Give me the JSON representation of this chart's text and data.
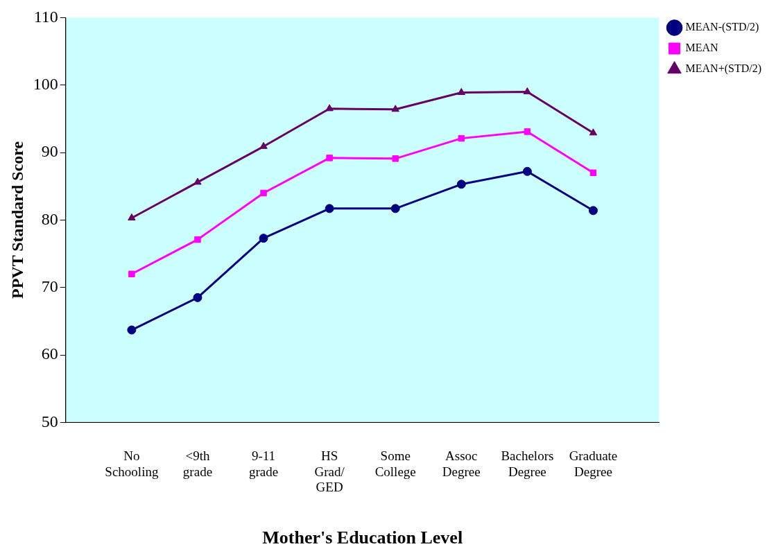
{
  "chart_data": {
    "type": "line",
    "xlabel": "Mother's Education Level",
    "ylabel": "PPVT Standard Score",
    "categories": [
      null,
      "No Schooling",
      "<9th grade",
      "9-11 grade",
      "HS Grad/ GED",
      "Some College",
      "Assoc Degree",
      "Bachelors Degree",
      "Graduate Degree",
      null
    ],
    "series": [
      {
        "name": "MEAN-(STD/2)",
        "color": "#000080",
        "marker": "circle",
        "values": [
          null,
          63.7,
          68.5,
          77.3,
          81.7,
          81.7,
          85.3,
          87.2,
          81.4,
          null
        ]
      },
      {
        "name": "MEAN",
        "color": "#ff00ff",
        "marker": "square",
        "values": [
          null,
          72.0,
          77.1,
          84.0,
          89.2,
          89.1,
          92.1,
          93.1,
          87.0,
          null
        ]
      },
      {
        "name": "MEAN+(STD/2)",
        "color": "#660066",
        "marker": "triangle",
        "values": [
          null,
          80.3,
          85.6,
          90.9,
          96.5,
          96.4,
          98.9,
          99.0,
          92.9,
          null
        ]
      }
    ],
    "ylim": [
      50,
      110
    ],
    "yticks": [
      50,
      60,
      70,
      80,
      90,
      100,
      110
    ],
    "grid": false,
    "legend": "top right",
    "line_style": "solid"
  }
}
